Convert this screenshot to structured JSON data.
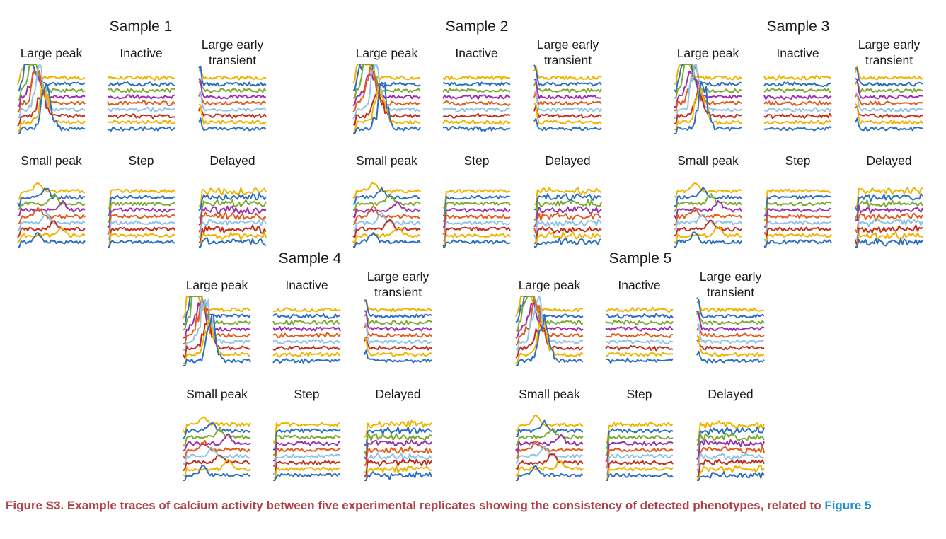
{
  "panel_labels": {
    "large_peak": "Large peak",
    "inactive": "Inactive",
    "large_early_transient": "Large early\ntransient",
    "small_peak": "Small peak",
    "step": "Step",
    "delayed": "Delayed"
  },
  "colors": {
    "trace_palette": [
      "#f0b400",
      "#2a6fc0",
      "#7aaa2e",
      "#9b2fae",
      "#e25c1a",
      "#8fc3e8",
      "#c03020"
    ],
    "caption": "#b0414b",
    "caption_link": "#1f8fd0"
  },
  "caption": {
    "text": "Figure S3.  Example traces of calcium activity between five experimental replicates showing the consistency of detected phenotypes, related to ",
    "link": "Figure 5"
  },
  "chart_data": [
    {
      "title": "Sample 1",
      "type": "line",
      "panels": [
        "Large peak",
        "Inactive",
        "Large early transient",
        "Small peak",
        "Step",
        "Delayed"
      ]
    },
    {
      "title": "Sample 2",
      "type": "line",
      "panels": [
        "Large peak",
        "Inactive",
        "Large early transient",
        "Small peak",
        "Step",
        "Delayed"
      ]
    },
    {
      "title": "Sample 3",
      "type": "line",
      "panels": [
        "Large peak",
        "Inactive",
        "Large early transient",
        "Small peak",
        "Step",
        "Delayed"
      ]
    },
    {
      "title": "Sample 4",
      "type": "line",
      "panels": [
        "Large peak",
        "Inactive",
        "Large early transient",
        "Small peak",
        "Step",
        "Delayed"
      ]
    },
    {
      "title": "Sample 5",
      "type": "line",
      "panels": [
        "Large peak",
        "Inactive",
        "Large early transient",
        "Small peak",
        "Step",
        "Delayed"
      ]
    }
  ]
}
